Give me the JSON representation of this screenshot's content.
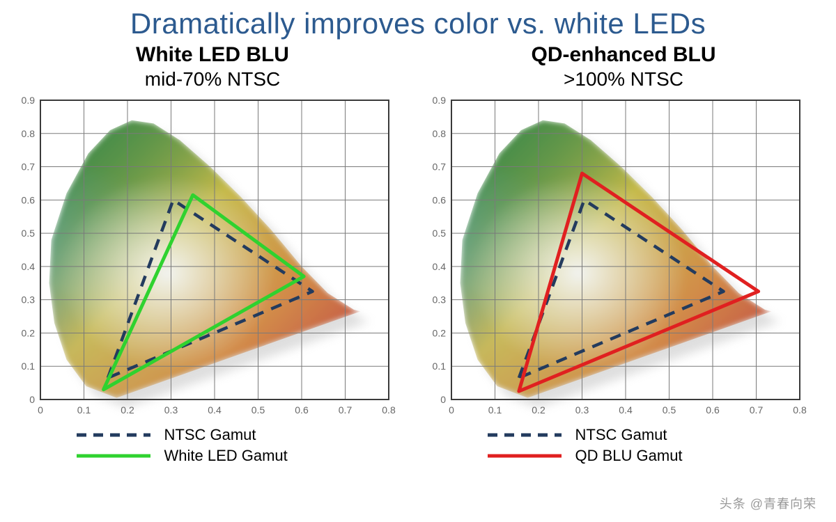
{
  "title": "Dramatically improves color vs. white LEDs",
  "title_color": "#2c5a8f",
  "title_fontsize": 42,
  "panels": [
    {
      "heading": "White LED BLU",
      "subheading": "mid-70% NTSC",
      "chart": {
        "type": "chromaticity-diagram",
        "xlim": [
          0,
          0.8
        ],
        "ylim": [
          0,
          0.9
        ],
        "xtick_step": 0.1,
        "ytick_step": 0.1,
        "tick_fontsize": 14,
        "tick_color": "#666666",
        "grid_color": "#7a7a7a",
        "border_color": "#3a3a3a",
        "background_color": "#ffffff",
        "ntsc_triangle": {
          "points": [
            [
              0.155,
              0.065
            ],
            [
              0.305,
              0.6
            ],
            [
              0.625,
              0.325
            ]
          ],
          "stroke": "#233b5e",
          "stroke_width": 4.5,
          "dash": [
            16,
            12
          ]
        },
        "gamut_triangle": {
          "label_key": "White LED Gamut",
          "points": [
            [
              0.145,
              0.03
            ],
            [
              0.35,
              0.615
            ],
            [
              0.605,
              0.37
            ]
          ],
          "stroke": "#2fd22f",
          "stroke_width": 5,
          "dash": null
        }
      },
      "legend": [
        {
          "label": "NTSC Gamut",
          "stroke": "#233b5e",
          "dash": [
            14,
            10
          ],
          "width": 5
        },
        {
          "label": "White LED Gamut",
          "stroke": "#2fd22f",
          "dash": null,
          "width": 5
        }
      ]
    },
    {
      "heading": "QD-enhanced BLU",
      "subheading": ">100% NTSC",
      "chart": {
        "type": "chromaticity-diagram",
        "xlim": [
          0,
          0.8
        ],
        "ylim": [
          0,
          0.9
        ],
        "xtick_step": 0.1,
        "ytick_step": 0.1,
        "tick_fontsize": 14,
        "tick_color": "#666666",
        "grid_color": "#7a7a7a",
        "border_color": "#3a3a3a",
        "background_color": "#ffffff",
        "ntsc_triangle": {
          "points": [
            [
              0.155,
              0.065
            ],
            [
              0.305,
              0.6
            ],
            [
              0.625,
              0.325
            ]
          ],
          "stroke": "#233b5e",
          "stroke_width": 4.5,
          "dash": [
            16,
            12
          ]
        },
        "gamut_triangle": {
          "label_key": "QD BLU Gamut",
          "points": [
            [
              0.155,
              0.025
            ],
            [
              0.3,
              0.68
            ],
            [
              0.705,
              0.325
            ]
          ],
          "stroke": "#e02020",
          "stroke_width": 5,
          "dash": null
        }
      },
      "legend": [
        {
          "label": "NTSC Gamut",
          "stroke": "#233b5e",
          "dash": [
            14,
            10
          ],
          "width": 5
        },
        {
          "label": "QD BLU Gamut",
          "stroke": "#e02020",
          "dash": null,
          "width": 5
        }
      ]
    }
  ],
  "chromaticity_locus": {
    "outline": [
      [
        0.175,
        0.005
      ],
      [
        0.105,
        0.04
      ],
      [
        0.06,
        0.12
      ],
      [
        0.032,
        0.23
      ],
      [
        0.02,
        0.35
      ],
      [
        0.025,
        0.48
      ],
      [
        0.06,
        0.62
      ],
      [
        0.11,
        0.74
      ],
      [
        0.16,
        0.81
      ],
      [
        0.21,
        0.84
      ],
      [
        0.26,
        0.83
      ],
      [
        0.32,
        0.78
      ],
      [
        0.39,
        0.7
      ],
      [
        0.46,
        0.61
      ],
      [
        0.53,
        0.51
      ],
      [
        0.6,
        0.4
      ],
      [
        0.66,
        0.32
      ],
      [
        0.72,
        0.27
      ],
      [
        0.735,
        0.265
      ],
      [
        0.175,
        0.005
      ]
    ],
    "gradient_stops": {
      "blue": "#3d57b5",
      "cyan": "#56a8c4",
      "green": "#3f8a4a",
      "yellow": "#ddc24a",
      "orange": "#d98b45",
      "red": "#c24b46",
      "white": "#f4f6f7"
    },
    "shadow_color": "#b7b7b7"
  },
  "watermark": "头条 @青春向荣"
}
